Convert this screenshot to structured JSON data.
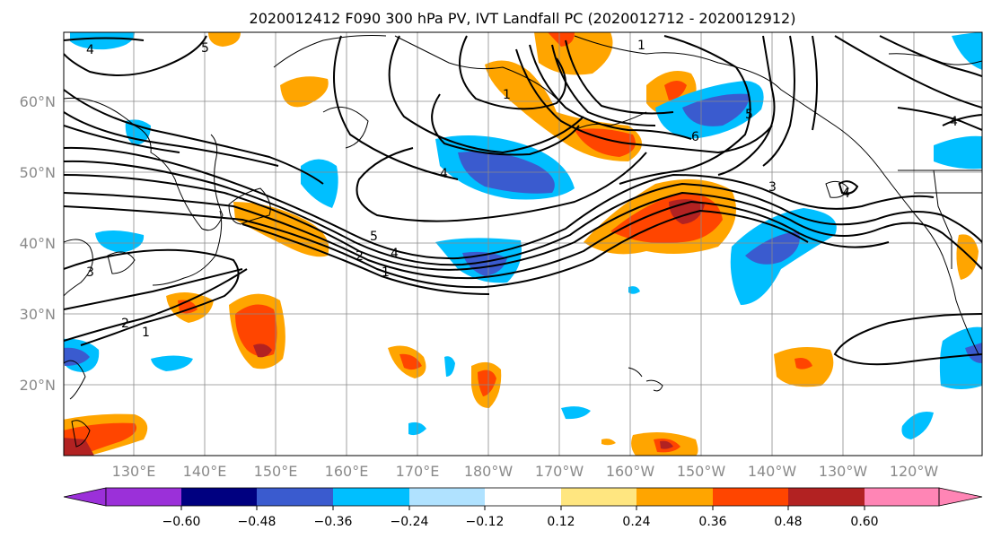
{
  "title": "2020012412 F090 300 hPa PV, IVT Landfall PC (2020012712 - 2020012912)",
  "colors": {
    "purple": "#9b30d9",
    "navy": "#000080",
    "blue_dark": "#3a5bcf",
    "blue": "#00bfff",
    "blue_light": "#b0e2ff",
    "white": "#ffffff",
    "yellow": "#ffe680",
    "orange": "#ffa500",
    "orange_red": "#ff4500",
    "dark_red": "#b22222",
    "pink": "#ff85b5"
  },
  "lat_labels": [
    "60°N",
    "50°N",
    "40°N",
    "30°N",
    "20°N"
  ],
  "lon_labels": [
    "130°E",
    "140°E",
    "150°E",
    "160°E",
    "170°E",
    "180°W",
    "170°W",
    "160°W",
    "150°W",
    "140°W",
    "130°W",
    "120°W"
  ],
  "colorbar": {
    "ticks": [
      "−0.60",
      "−0.48",
      "−0.36",
      "−0.24",
      "−0.12",
      "0.12",
      "0.24",
      "0.36",
      "0.48",
      "0.60"
    ]
  },
  "contour_labels": [
    "4",
    "5",
    "1",
    "1",
    "4",
    "6",
    "5",
    "3",
    "4",
    "5",
    "4",
    "2",
    "1",
    "3",
    "2",
    "1",
    "4"
  ]
}
